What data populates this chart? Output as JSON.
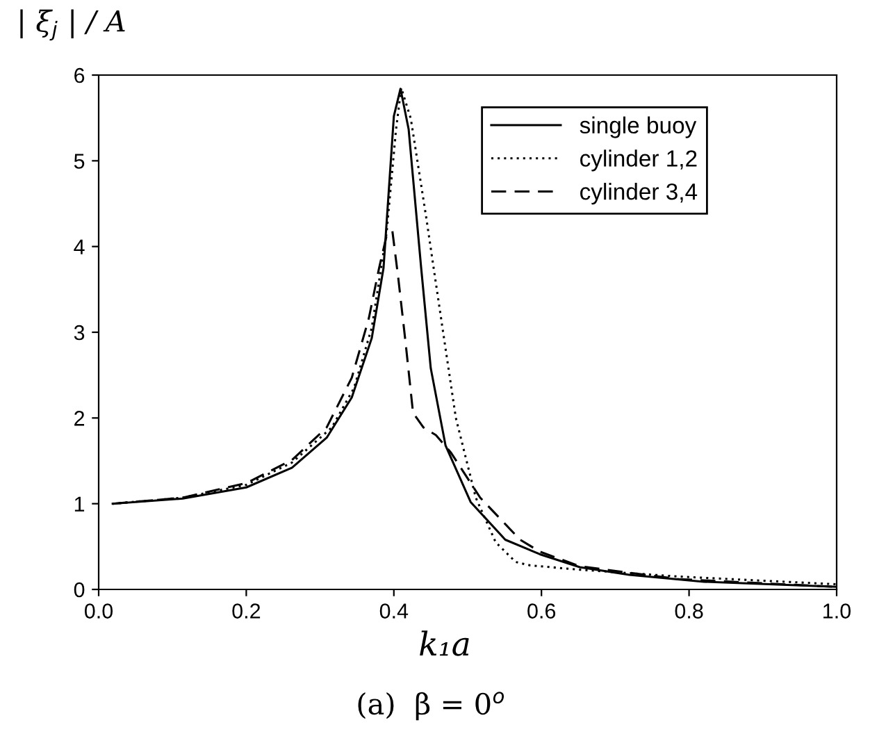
{
  "chart_data": {
    "type": "line",
    "xlabel": "k₁a",
    "ylabel": "| ξ$_{j}$ | / A",
    "annotations": [
      "(a)  β = 0$^{o}$"
    ],
    "xlim": [
      0.0,
      1.0
    ],
    "xticks": [
      {
        "value": 0.0,
        "label": "0.0"
      },
      {
        "value": 0.2,
        "label": "0.2"
      },
      {
        "value": 0.4,
        "label": "0.4"
      },
      {
        "value": 0.6,
        "label": "0.6"
      },
      {
        "value": 0.8,
        "label": "0.8"
      },
      {
        "value": 1.0,
        "label": "1.0"
      }
    ],
    "ylim": [
      0,
      6
    ],
    "yticks": [
      0,
      1,
      2,
      3,
      4,
      5,
      6
    ],
    "grid": false,
    "legend": "top right",
    "series": [
      {
        "name": "single buoy",
        "color": "#000000",
        "line_style": "solid",
        "x": [
          0.019,
          0.114,
          0.2,
          0.262,
          0.309,
          0.343,
          0.37,
          0.386,
          0.4,
          0.409,
          0.42,
          0.437,
          0.45,
          0.47,
          0.504,
          0.551,
          0.598,
          0.652,
          0.719,
          0.82,
          1.0
        ],
        "values": [
          1.0,
          1.06,
          1.19,
          1.42,
          1.77,
          2.24,
          2.93,
          3.75,
          5.52,
          5.84,
          5.37,
          3.75,
          2.58,
          1.68,
          1.02,
          0.58,
          0.41,
          0.26,
          0.17,
          0.09,
          0.03
        ]
      },
      {
        "name": "cylinder 1,2",
        "color": "#000000",
        "line_style": "dotted",
        "x": [
          0.019,
          0.114,
          0.2,
          0.262,
          0.316,
          0.346,
          0.37,
          0.39,
          0.403,
          0.41,
          0.423,
          0.444,
          0.464,
          0.484,
          0.511,
          0.538,
          0.565,
          0.585,
          0.652,
          0.786,
          1.0
        ],
        "values": [
          1.0,
          1.07,
          1.22,
          1.48,
          1.89,
          2.35,
          3.05,
          4.15,
          5.37,
          5.85,
          5.49,
          4.33,
          3.16,
          2.0,
          1.07,
          0.55,
          0.32,
          0.28,
          0.23,
          0.15,
          0.06
        ]
      },
      {
        "name": "cylinder 3,4",
        "color": "#000000",
        "line_style": "dashed",
        "x": [
          0.019,
          0.114,
          0.2,
          0.262,
          0.309,
          0.343,
          0.366,
          0.38,
          0.39,
          0.398,
          0.406,
          0.416,
          0.426,
          0.44,
          0.457,
          0.477,
          0.517,
          0.571,
          0.598,
          0.652,
          0.786,
          1.0
        ],
        "values": [
          1.0,
          1.07,
          1.24,
          1.51,
          1.89,
          2.47,
          3.16,
          3.75,
          4.12,
          4.18,
          3.63,
          2.87,
          2.06,
          1.89,
          1.8,
          1.6,
          1.07,
          0.58,
          0.44,
          0.27,
          0.12,
          0.03
        ]
      }
    ]
  }
}
